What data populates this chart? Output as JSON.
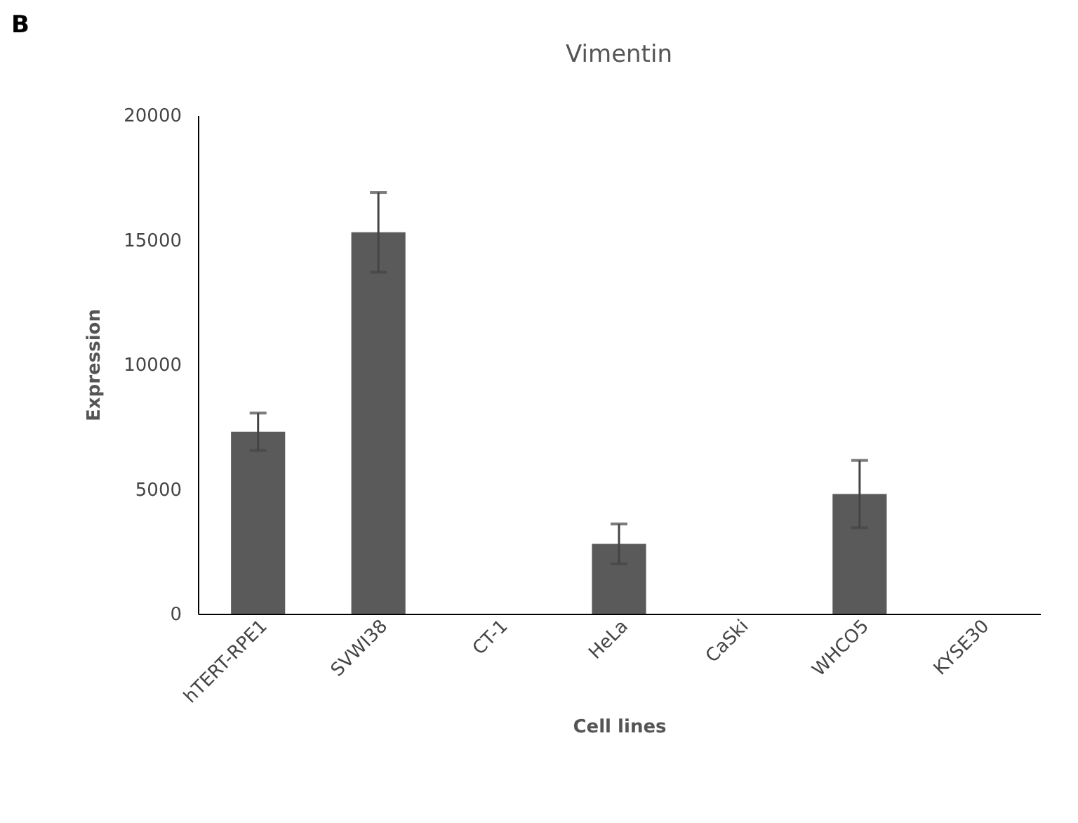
{
  "chart_data": {
    "type": "bar",
    "title": "Vimentin",
    "xlabel": "Cell lines",
    "ylabel": "Expression",
    "annotations": [
      "B"
    ],
    "categories": [
      "hTERT-RPE1",
      "SVWI38",
      "CT-1",
      "HeLa",
      "CaSki",
      "WHCO5",
      "KYSE30"
    ],
    "values": [
      7300,
      15300,
      0,
      2800,
      0,
      4800,
      0
    ],
    "errors": [
      750,
      1600,
      null,
      800,
      null,
      1350,
      null
    ],
    "color": "#5a5a5a",
    "ylim": [
      0,
      20000
    ],
    "yticks": [
      0,
      5000,
      10000,
      15000,
      20000
    ],
    "grid": false
  }
}
